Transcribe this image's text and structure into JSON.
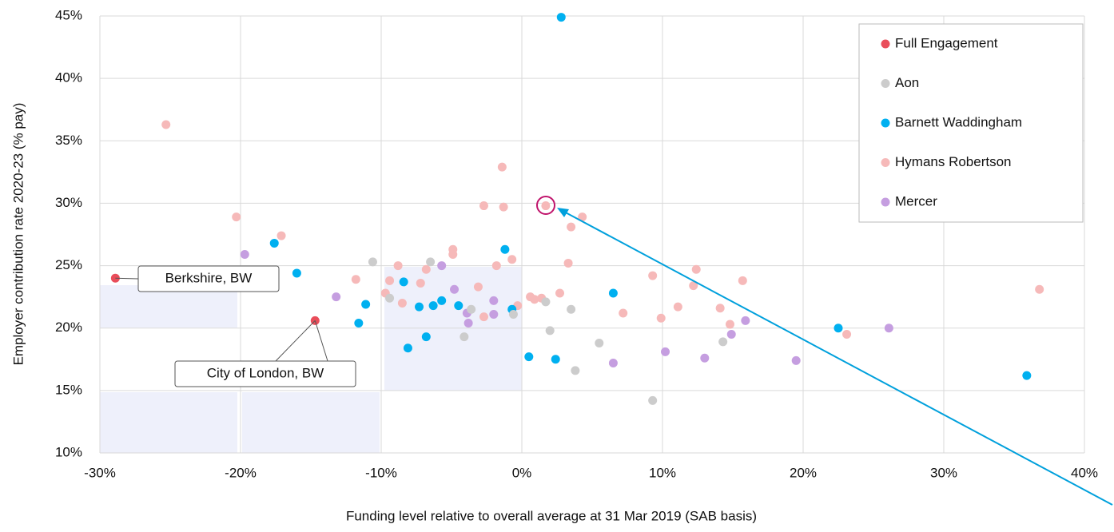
{
  "chart_data": {
    "type": "scatter",
    "x_label": "Funding level relative to overall average at 31 Mar 2019 (SAB basis)",
    "y_label": "Employer contribution rate 2020-23 (% pay)",
    "xlim": [
      -30,
      40
    ],
    "ylim": [
      10,
      45
    ],
    "xticks": [
      {
        "value": -30,
        "label": "-30%"
      },
      {
        "value": -20,
        "label": "-20%"
      },
      {
        "value": -10,
        "label": "-10%"
      },
      {
        "value": 0,
        "label": "0%"
      },
      {
        "value": 10,
        "label": "10%"
      },
      {
        "value": 20,
        "label": "20%"
      },
      {
        "value": 30,
        "label": "30%"
      },
      {
        "value": 40,
        "label": "40%"
      }
    ],
    "yticks": [
      {
        "value": 10,
        "label": "10%"
      },
      {
        "value": 15,
        "label": "15%"
      },
      {
        "value": 20,
        "label": "20%"
      },
      {
        "value": 25,
        "label": "25%"
      },
      {
        "value": 30,
        "label": "30%"
      },
      {
        "value": 35,
        "label": "35%"
      },
      {
        "value": 40,
        "label": "40%"
      },
      {
        "value": 45,
        "label": "45%"
      }
    ],
    "grid": true,
    "legend": "top-right",
    "annotations": [
      "Berkshire, BW",
      "City of London, BW"
    ],
    "series": [
      {
        "name": "Full Engagement",
        "color": "#e94d5a",
        "x": [
          -28.9,
          -14.7
        ],
        "values": [
          24.0,
          20.6
        ]
      },
      {
        "name": "Aon",
        "color": "#cccccc",
        "x": [
          -10.6,
          -9.4,
          -6.5,
          -4.1,
          -3.6,
          -0.6,
          1.7,
          2.0,
          3.5,
          3.8,
          5.5,
          9.3,
          14.3
        ],
        "values": [
          25.3,
          22.4,
          25.3,
          19.3,
          21.5,
          21.1,
          22.1,
          19.8,
          21.5,
          16.6,
          18.8,
          14.2,
          18.9
        ]
      },
      {
        "name": "Barnett Waddingham",
        "color": "#00b0f0",
        "x": [
          2.8,
          -17.6,
          -16.0,
          -11.1,
          -11.6,
          -8.4,
          -8.1,
          -7.3,
          -6.8,
          -6.3,
          -5.7,
          -4.5,
          -0.7,
          -1.2,
          0.5,
          2.4,
          6.5,
          22.5,
          35.9
        ],
        "values": [
          44.9,
          26.8,
          24.4,
          21.9,
          20.4,
          23.7,
          18.4,
          21.7,
          19.3,
          21.8,
          22.2,
          21.8,
          21.5,
          26.3,
          17.7,
          17.5,
          22.8,
          20.0,
          16.2
        ]
      },
      {
        "name": "Hymans Robertson",
        "color": "#f6b9b9",
        "x": [
          -25.3,
          -20.3,
          -17.1,
          -11.8,
          -9.7,
          -9.4,
          -8.8,
          -8.5,
          -7.2,
          -6.8,
          -4.9,
          -4.9,
          -3.1,
          -2.7,
          -2.7,
          -1.4,
          -1.3,
          -1.8,
          -0.7,
          -0.3,
          0.6,
          0.9,
          1.4,
          1.7,
          2.7,
          3.3,
          3.5,
          4.3,
          7.2,
          9.3,
          9.9,
          11.1,
          12.4,
          12.2,
          14.1,
          14.8,
          15.7,
          23.1,
          36.8
        ],
        "values": [
          36.3,
          28.9,
          27.4,
          23.9,
          22.8,
          23.8,
          25.0,
          22.0,
          23.6,
          24.7,
          26.3,
          25.9,
          23.3,
          20.9,
          29.8,
          32.9,
          29.7,
          25.0,
          25.5,
          21.8,
          22.5,
          22.3,
          22.4,
          29.8,
          22.8,
          25.2,
          28.1,
          28.9,
          21.2,
          24.2,
          20.8,
          21.7,
          24.7,
          23.4,
          21.6,
          20.3,
          23.8,
          19.5,
          23.1
        ]
      },
      {
        "name": "Mercer",
        "color": "#c59ee0",
        "x": [
          -19.7,
          -13.2,
          -5.7,
          -4.8,
          -3.8,
          -3.9,
          -2.0,
          -2.0,
          6.5,
          10.2,
          13.0,
          14.9,
          15.9,
          19.5,
          26.1
        ],
        "values": [
          25.9,
          22.5,
          25.0,
          23.1,
          20.4,
          21.2,
          22.2,
          21.1,
          17.2,
          18.1,
          17.6,
          19.5,
          20.6,
          17.4,
          20.0
        ]
      }
    ]
  }
}
